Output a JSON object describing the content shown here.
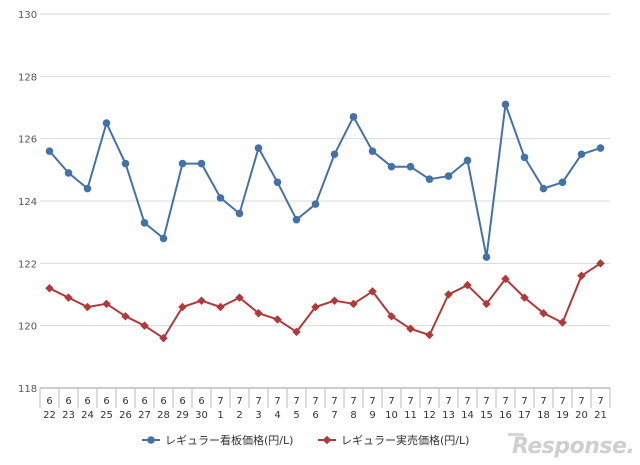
{
  "watermark": "Response.",
  "chart_data": {
    "type": "line",
    "title": "",
    "xlabel": "",
    "ylabel": "",
    "ylim": [
      118,
      130
    ],
    "yticks": [
      "118",
      "120",
      "122",
      "124",
      "126",
      "128",
      "130"
    ],
    "grid": "horizontal",
    "legend_position": "bottom",
    "categories": [
      {
        "month": "6",
        "day": "22"
      },
      {
        "month": "6",
        "day": "23"
      },
      {
        "month": "6",
        "day": "24"
      },
      {
        "month": "6",
        "day": "25"
      },
      {
        "month": "6",
        "day": "26"
      },
      {
        "month": "6",
        "day": "27"
      },
      {
        "month": "6",
        "day": "28"
      },
      {
        "month": "6",
        "day": "29"
      },
      {
        "month": "6",
        "day": "30"
      },
      {
        "month": "7",
        "day": "1"
      },
      {
        "month": "7",
        "day": "2"
      },
      {
        "month": "7",
        "day": "3"
      },
      {
        "month": "7",
        "day": "4"
      },
      {
        "month": "7",
        "day": "5"
      },
      {
        "month": "7",
        "day": "6"
      },
      {
        "month": "7",
        "day": "7"
      },
      {
        "month": "7",
        "day": "8"
      },
      {
        "month": "7",
        "day": "9"
      },
      {
        "month": "7",
        "day": "10"
      },
      {
        "month": "7",
        "day": "11"
      },
      {
        "month": "7",
        "day": "12"
      },
      {
        "month": "7",
        "day": "13"
      },
      {
        "month": "7",
        "day": "14"
      },
      {
        "month": "7",
        "day": "15"
      },
      {
        "month": "7",
        "day": "16"
      },
      {
        "month": "7",
        "day": "17"
      },
      {
        "month": "7",
        "day": "18"
      },
      {
        "month": "7",
        "day": "19"
      },
      {
        "month": "7",
        "day": "20"
      },
      {
        "month": "7",
        "day": "21"
      }
    ],
    "series": [
      {
        "name": "レギュラー看板価格(円/L)",
        "color": "#4472a8",
        "marker": "circle",
        "values": [
          125.6,
          124.9,
          124.4,
          126.5,
          125.2,
          123.3,
          122.8,
          125.2,
          125.2,
          124.1,
          123.6,
          125.7,
          124.6,
          123.4,
          123.9,
          125.5,
          126.7,
          125.6,
          125.1,
          125.1,
          124.7,
          124.8,
          125.3,
          122.2,
          127.1,
          125.4,
          124.4,
          124.6,
          125.5,
          125.7
        ]
      },
      {
        "name": "レギュラー実売価格(円/L)",
        "color": "#b03a3a",
        "marker": "diamond",
        "values": [
          121.2,
          120.9,
          120.6,
          120.7,
          120.3,
          120.0,
          119.6,
          120.6,
          120.8,
          120.6,
          120.9,
          120.4,
          120.2,
          119.8,
          120.6,
          120.8,
          120.7,
          121.1,
          120.3,
          119.9,
          119.7,
          121.0,
          121.3,
          120.7,
          121.5,
          120.9,
          120.4,
          120.1,
          121.6,
          122.0
        ]
      }
    ]
  }
}
